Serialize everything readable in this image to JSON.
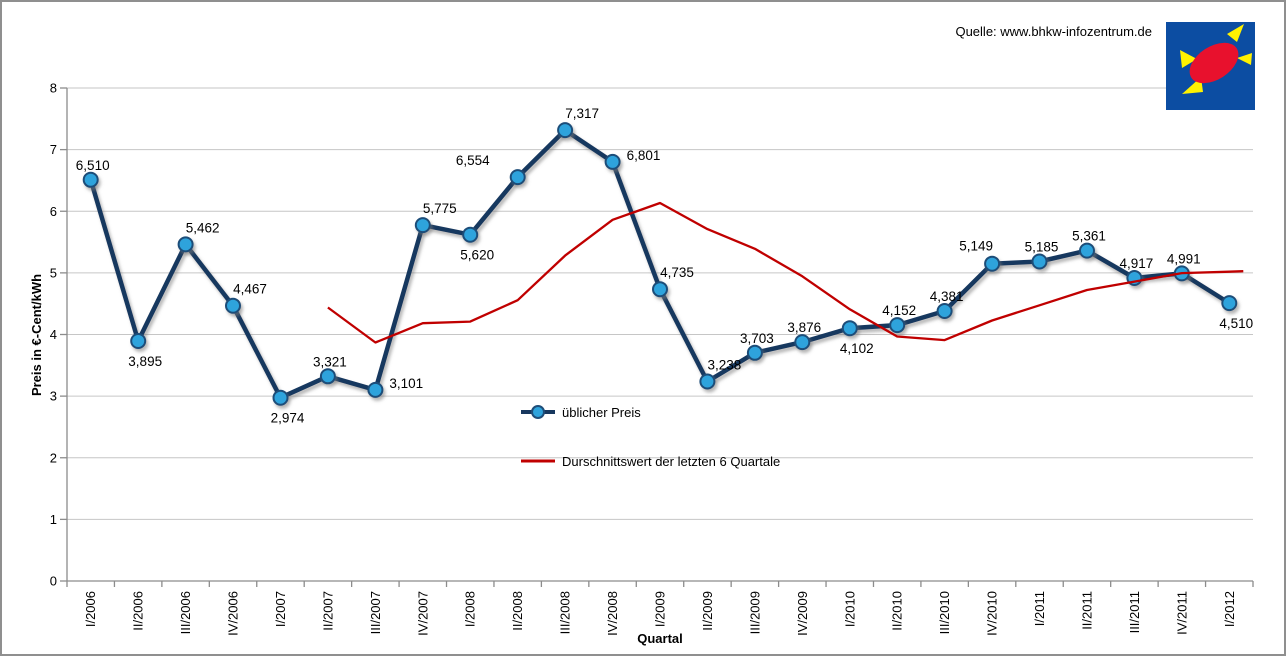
{
  "source": {
    "label": "Quelle: www.bhkw-infozentrum.de"
  },
  "legend": {
    "items": [
      {
        "label": "üblicher Preis"
      },
      {
        "label": "Durschnittswert der letzten 6 Quartale"
      }
    ]
  },
  "colors": {
    "blue_line": "#17375E",
    "marker_fill": "#2EA3DC",
    "marker_edge": "#1F4E79",
    "red_line": "#C00000",
    "grid": "#C6C6C6",
    "axis": "#8C8C8C",
    "text": "#000000",
    "logo_blue": "#0C4DA2",
    "logo_red": "#E8112D",
    "logo_yellow": "#FFF200"
  },
  "chart_data": {
    "type": "line",
    "title": "",
    "xlabel": "Quartal",
    "ylabel": "Preis in €-Cent/kWh",
    "ylim": [
      0,
      8
    ],
    "yticks": [
      0,
      1,
      2,
      3,
      4,
      5,
      6,
      7,
      8
    ],
    "grid": "horizontal",
    "legend_position": "floating-center",
    "categories": [
      "I/2006",
      "II/2006",
      "III/2006",
      "IV/2006",
      "I/2007",
      "II/2007",
      "III/2007",
      "IV/2007",
      "I/2008",
      "II/2008",
      "III/2008",
      "IV/2008",
      "I/2009",
      "II/2009",
      "III/2009",
      "IV/2009",
      "I/2010",
      "II/2010",
      "III/2010",
      "IV/2010",
      "I/2011",
      "II/2011",
      "III/2011",
      "IV/2011",
      "I/2012"
    ],
    "series": [
      {
        "name": "üblicher Preis",
        "style": "line-with-markers",
        "color": "#17375E",
        "marker_fill": "#2EA3DC",
        "start_index": 0,
        "values": [
          6.51,
          3.895,
          5.462,
          4.467,
          2.974,
          3.321,
          3.101,
          5.775,
          5.62,
          6.554,
          7.317,
          6.801,
          4.735,
          3.238,
          3.703,
          3.876,
          4.102,
          4.152,
          4.381,
          5.149,
          5.185,
          5.361,
          4.917,
          4.991,
          4.51
        ],
        "labels": [
          "6,510",
          "3,895",
          "5,462",
          "4,467",
          "2,974",
          "3,321",
          "3,101",
          "5,775",
          "5,620",
          "6,554",
          "7,317",
          "6,801",
          "4,735",
          "3,238",
          "3,703",
          "3,876",
          "4,102",
          "4,152",
          "4,381",
          "5,149",
          "5,185",
          "5,361",
          "4,917",
          "4,991",
          "4,510"
        ],
        "label_pos": [
          "a",
          "b",
          "ar",
          "ar",
          "b",
          "a",
          "r",
          "ar",
          "b",
          "la",
          "ar",
          "r",
          "ar",
          "ar",
          "a",
          "a",
          "b",
          "a",
          "a",
          "al",
          "a",
          "a",
          "a",
          "a",
          "b"
        ]
      },
      {
        "name": "Durschnittswert der letzten 6 Quartale",
        "style": "line",
        "color": "#C00000",
        "start_index": 5,
        "values": [
          4.438,
          3.87,
          4.183,
          4.21,
          4.557,
          5.281,
          5.861,
          6.134,
          5.711,
          5.391,
          4.945,
          4.409,
          3.968,
          3.909,
          4.227,
          4.474,
          4.722,
          4.858,
          4.997,
          5.019
        ]
      }
    ]
  }
}
